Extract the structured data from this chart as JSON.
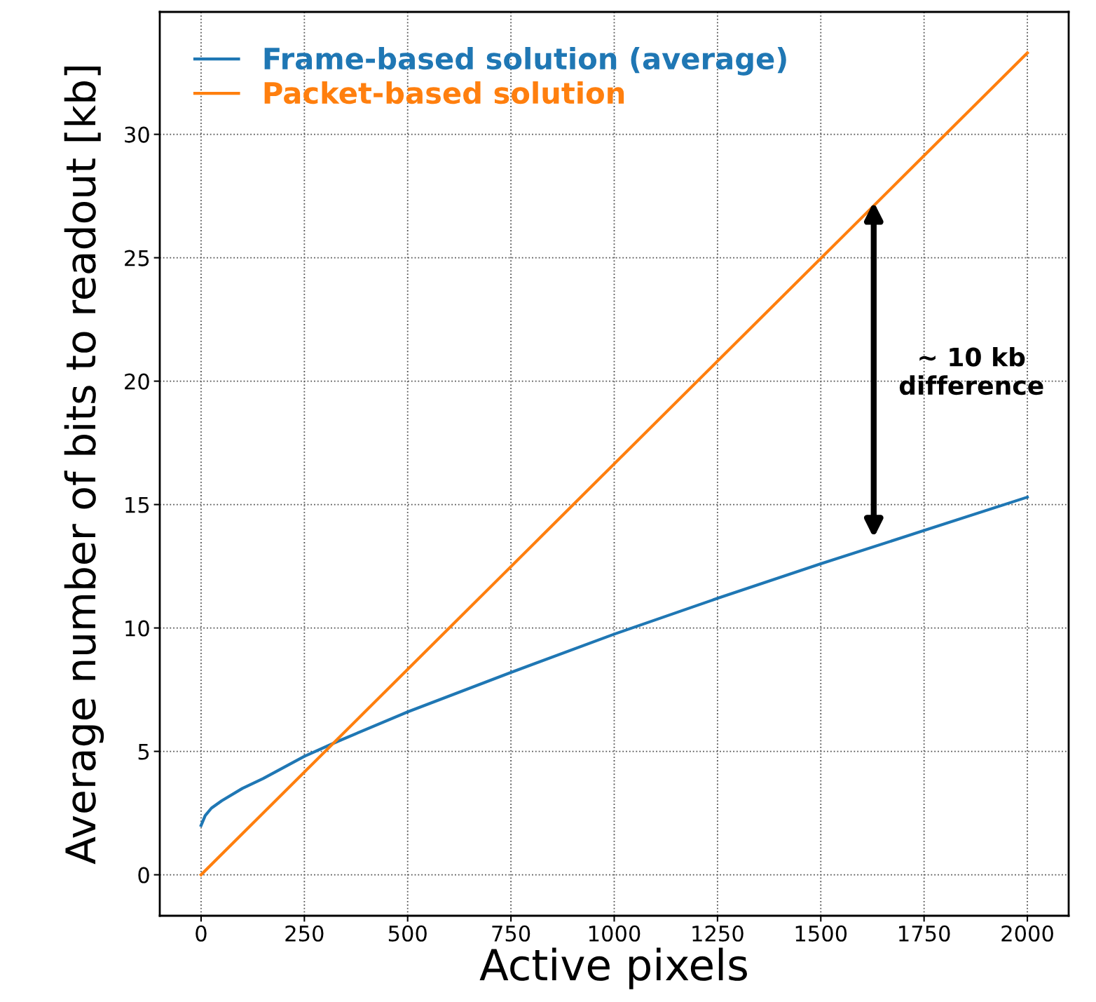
{
  "chart_data": {
    "type": "line",
    "xlabel": "Active pixels",
    "ylabel": "Average number of bits to readout [kb]",
    "xlim": [
      -100,
      2100
    ],
    "ylim": [
      -1.66,
      34.96
    ],
    "xticks": [
      0,
      250,
      500,
      750,
      1000,
      1250,
      1500,
      1750,
      2000
    ],
    "yticks": [
      0,
      5,
      10,
      15,
      20,
      25,
      30
    ],
    "grid": true,
    "legend": "top left",
    "line_style": "solid",
    "marker": "none",
    "series": [
      {
        "name": "Frame-based solution (average)",
        "color": "#1f77b4",
        "x": [
          0,
          10,
          25,
          50,
          100,
          150,
          250,
          330,
          500,
          750,
          1000,
          1250,
          1500,
          1750,
          2000
        ],
        "values": [
          2.0,
          2.4,
          2.7,
          3.0,
          3.5,
          3.9,
          4.8,
          5.4,
          6.6,
          8.2,
          9.75,
          11.2,
          12.6,
          13.95,
          15.3
        ]
      },
      {
        "name": "Packet-based solution",
        "color": "#ff7f0e",
        "x": [
          0,
          2000
        ],
        "values": [
          0,
          33.3
        ]
      }
    ],
    "annotations": [
      "~ 10 kb\ndifference"
    ]
  }
}
